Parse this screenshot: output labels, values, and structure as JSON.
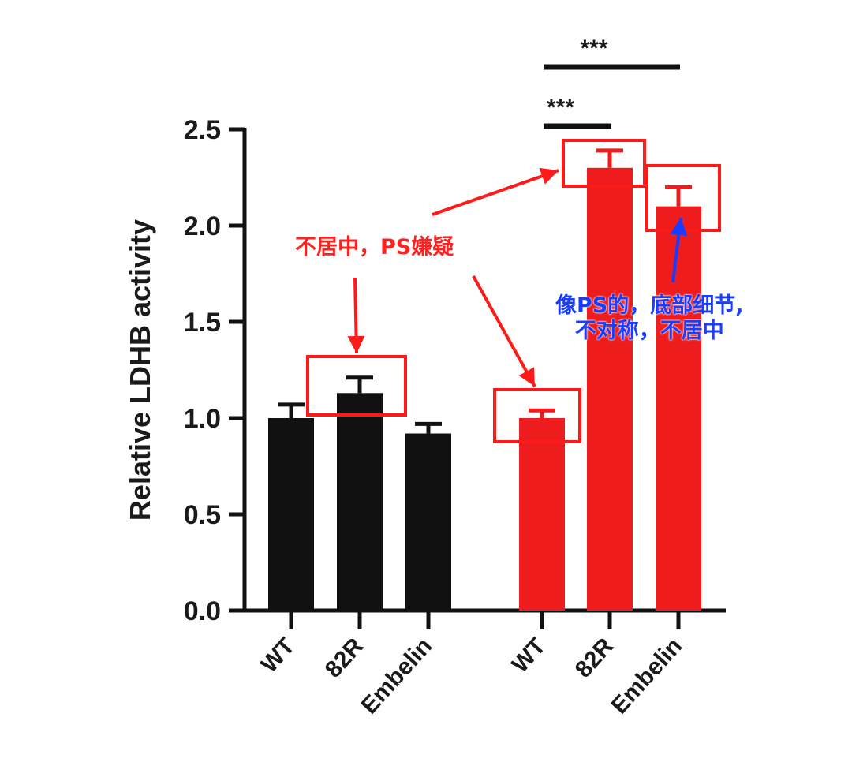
{
  "chart_data": {
    "type": "bar",
    "ylabel": "Relative LDHB activity",
    "ylim": [
      0,
      2.5
    ],
    "yticks": [
      "0.0",
      "0.5",
      "1.0",
      "1.5",
      "2.0",
      "2.5"
    ],
    "categories": [
      "WT",
      "82R",
      "Embelin",
      "WT",
      "82R",
      "Embelin"
    ],
    "values": [
      1.0,
      1.13,
      0.92,
      1.0,
      2.3,
      2.1
    ],
    "errors": [
      0.07,
      0.08,
      0.05,
      0.04,
      0.09,
      0.1
    ],
    "colors": [
      "#111111",
      "#111111",
      "#111111",
      "#ee1c1c",
      "#ee1c1c",
      "#ee1c1c"
    ],
    "significance": [
      {
        "from": 3,
        "to": 4,
        "label": "***"
      },
      {
        "from": 3,
        "to": 5,
        "label": "***"
      }
    ]
  },
  "annotations": {
    "red_note": "不居中，PS嫌疑",
    "blue_note_line1": "像PS的，底部细节,",
    "blue_note_line2": "不对称，不居中",
    "box_color": "#ff1a1a",
    "red_arrow_color": "#ff1a1a",
    "blue_arrow_color": "#1a3cff"
  }
}
